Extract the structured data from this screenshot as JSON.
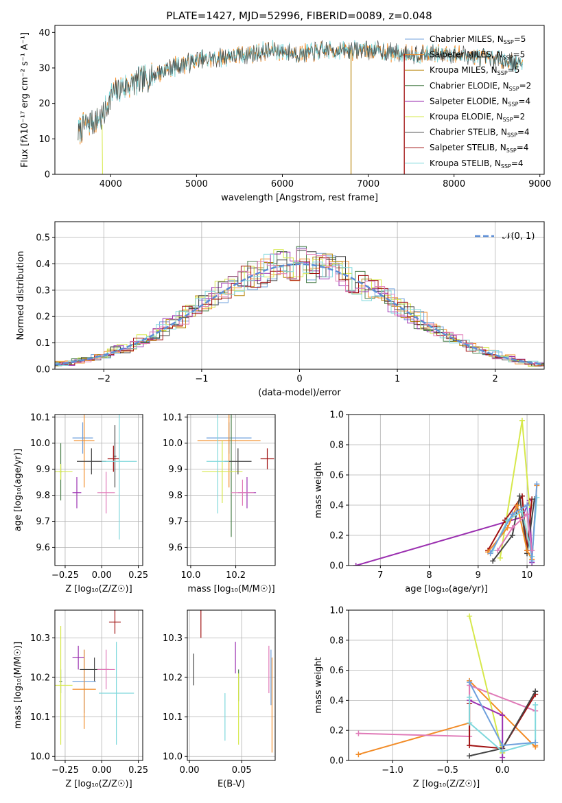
{
  "title": "PLATE=1427, MJD=52996, FIBERID=0089, z=0.048",
  "colors": {
    "Chabrier MILES": "#6fa0dc",
    "Salpeter MILES": "#f28c28",
    "Kroupa MILES": "#b8860b",
    "Chabrier ELODIE": "#4a7f4a",
    "Salpeter ELODIE": "#9b30b0",
    "Kroupa ELODIE": "#d6e84a",
    "Chabrier STELIB": "#444444",
    "Salpeter STELIB": "#a01010",
    "Kroupa STELIB": "#7fd8dc",
    "Pink": "#e07ab8",
    "gaussian": "#5b8dd6",
    "grid": "#b0b0b0"
  },
  "legend_spectrum": [
    {
      "model": "Chabrier MILES",
      "n": "5"
    },
    {
      "model": "Salpeter MILES",
      "n": "5"
    },
    {
      "model": "Kroupa MILES",
      "n": "5"
    },
    {
      "model": "Chabrier ELODIE",
      "n": "2"
    },
    {
      "model": "Salpeter ELODIE",
      "n": "4"
    },
    {
      "model": "Kroupa ELODIE",
      "n": "2"
    },
    {
      "model": "Chabrier STELIB",
      "n": "4"
    },
    {
      "model": "Salpeter STELIB",
      "n": "4"
    },
    {
      "model": "Kroupa STELIB",
      "n": "4"
    }
  ],
  "chart_data": [
    {
      "type": "line",
      "id": "spectrum",
      "xlabel": "wavelength [Angstrom, rest frame]",
      "ylabel": "Flux [fλ10⁻¹⁷ erg cm⁻² s⁻¹ A⁻¹]",
      "xlim": [
        3350,
        9050
      ],
      "ylim": [
        0,
        42
      ],
      "xticks": [
        4000,
        5000,
        6000,
        7000,
        8000,
        9000
      ],
      "yticks": [
        0,
        10,
        20,
        30,
        40
      ],
      "continuum": {
        "x": [
          3620,
          3700,
          3800,
          3900,
          4000,
          4100,
          4300,
          4500,
          4700,
          5000,
          5300,
          5600,
          5900,
          6200,
          6500,
          6800,
          7100,
          7400,
          7700,
          8000,
          8300,
          8600,
          8800
        ],
        "y": [
          12,
          14,
          15,
          16,
          22,
          24,
          26,
          28,
          30,
          32,
          33,
          34,
          35,
          34,
          35,
          35,
          35,
          34,
          34,
          34,
          33,
          32,
          31
        ]
      },
      "drops": [
        {
          "x": 6800,
          "model": "Kroupa MILES"
        },
        {
          "x": 7420,
          "model": "Salpeter STELIB"
        }
      ]
    },
    {
      "type": "bar",
      "id": "residuals",
      "xlabel": "(data-model)/error",
      "ylabel": "Normed distribution",
      "xlim": [
        -2.5,
        2.5
      ],
      "ylim": [
        0,
        0.56
      ],
      "xticks": [
        -2,
        -1,
        0,
        1,
        2
      ],
      "xticklabels": [
        "−2",
        "−1",
        "0",
        "1",
        "2"
      ],
      "yticks": [
        0.0,
        0.1,
        0.2,
        0.3,
        0.4,
        0.5
      ],
      "legend": "𝒩(0, 1)",
      "bin_width": 0.1
    },
    {
      "type": "scatter",
      "id": "Z-age",
      "xlabel": "Z [log₁₀(Z/Z☉)]",
      "ylabel": "age  [log₁₀(age/yr)]",
      "xlim": [
        -0.32,
        0.28
      ],
      "ylim": [
        9.53,
        10.11
      ],
      "xticks": [
        -0.25,
        0.0,
        0.25
      ],
      "xticklabels": [
        "−0.25",
        "0.00",
        "0.25"
      ],
      "yticks": [
        9.6,
        9.7,
        9.8,
        9.9,
        10.0,
        10.1
      ],
      "points": [
        {
          "m": "Chabrier MILES",
          "x": -0.13,
          "y": 10.02,
          "dx": 0.07,
          "dy": 0.06
        },
        {
          "m": "Salpeter MILES",
          "x": -0.12,
          "y": 10.01,
          "dx": 0.07,
          "dy": 0.18
        },
        {
          "m": "Chabrier ELODIE",
          "x": -0.28,
          "y": 9.89,
          "dx": 0.01,
          "dy": 0.11
        },
        {
          "m": "Salpeter ELODIE",
          "x": -0.17,
          "y": 9.81,
          "dx": 0.03,
          "dy": 0.06
        },
        {
          "m": "Kroupa ELODIE",
          "x": -0.28,
          "y": 9.89,
          "dx": 0.08,
          "dy": 0.03
        },
        {
          "m": "Chabrier STELIB",
          "x": -0.07,
          "y": 9.93,
          "dx": 0.1,
          "dy": 0.05
        },
        {
          "m": "Chabrier STELIB",
          "x": 0.09,
          "y": 9.95,
          "dx": 0.01,
          "dy": 0.12
        },
        {
          "m": "Salpeter STELIB",
          "x": 0.08,
          "y": 9.94,
          "dx": 0.04,
          "dy": 0.05
        },
        {
          "m": "Kroupa STELIB",
          "x": 0.12,
          "y": 9.93,
          "dx": 0.12,
          "dy": 0.3
        },
        {
          "m": "Pink",
          "x": 0.03,
          "y": 9.81,
          "dx": 0.06,
          "dy": 0.08
        }
      ]
    },
    {
      "type": "scatter",
      "id": "mass-age",
      "xlabel": "mass [log₁₀(M/M☉)]",
      "ylabel": "",
      "xlim": [
        9.985,
        10.375
      ],
      "ylim": [
        9.53,
        10.11
      ],
      "xticks": [
        10.0,
        10.2
      ],
      "yticks": [
        9.6,
        9.7,
        9.8,
        9.9,
        10.0,
        10.1
      ],
      "points": [
        {
          "m": "Chabrier MILES",
          "x": 10.17,
          "y": 10.02,
          "dx": 0.1,
          "dy": 0.06
        },
        {
          "m": "Salpeter MILES",
          "x": 10.17,
          "y": 10.01,
          "dx": 0.14,
          "dy": 0.18
        },
        {
          "m": "Chabrier ELODIE",
          "x": 10.18,
          "y": 9.89,
          "dx": 0.005,
          "dy": 0.25
        },
        {
          "m": "Salpeter ELODIE",
          "x": 10.25,
          "y": 9.81,
          "dx": 0.04,
          "dy": 0.06
        },
        {
          "m": "Kroupa ELODIE",
          "x": 10.14,
          "y": 9.89,
          "dx": 0.09,
          "dy": 0.12
        },
        {
          "m": "Chabrier STELIB",
          "x": 10.21,
          "y": 9.93,
          "dx": 0.06,
          "dy": 0.05
        },
        {
          "m": "Salpeter STELIB",
          "x": 10.34,
          "y": 9.94,
          "dx": 0.03,
          "dy": 0.04
        },
        {
          "m": "Kroupa STELIB",
          "x": 10.12,
          "y": 9.93,
          "dx": 0.05,
          "dy": 0.2
        },
        {
          "m": "Pink",
          "x": 10.23,
          "y": 9.81,
          "dx": 0.05,
          "dy": 0.05
        }
      ]
    },
    {
      "type": "line",
      "id": "age-weight",
      "xlabel": "age  [log₁₀(age/yr)]",
      "ylabel": "mass weight",
      "xlim": [
        6.35,
        10.35
      ],
      "ylim": [
        0,
        1.0
      ],
      "xticks": [
        7,
        8,
        9,
        10
      ],
      "yticks": [
        0.0,
        0.2,
        0.4,
        0.6,
        0.8,
        1.0
      ],
      "series": [
        {
          "m": "Salpeter ELODIE",
          "x": [
            6.5,
            9.9,
            10.05,
            10.1
          ],
          "y": [
            0.0,
            0.32,
            0.43,
            0.02
          ]
        },
        {
          "m": "Kroupa ELODIE",
          "x": [
            9.45,
            9.9,
            10.05
          ],
          "y": [
            0.05,
            0.96,
            0.4
          ]
        },
        {
          "m": "Salpeter STELIB",
          "x": [
            9.2,
            9.55,
            9.9,
            10.0,
            10.1
          ],
          "y": [
            0.1,
            0.3,
            0.46,
            0.1,
            0.44
          ]
        },
        {
          "m": "Chabrier STELIB",
          "x": [
            9.3,
            9.7,
            9.85,
            10.0,
            10.15
          ],
          "y": [
            0.03,
            0.2,
            0.46,
            0.08,
            0.44
          ]
        },
        {
          "m": "Salpeter MILES",
          "x": [
            9.2,
            9.6,
            9.8,
            10.0,
            10.1,
            10.2
          ],
          "y": [
            0.09,
            0.25,
            0.4,
            0.1,
            0.04,
            0.53
          ]
        },
        {
          "m": "Kroupa STELIB",
          "x": [
            9.3,
            9.6,
            9.9,
            10.1,
            10.2
          ],
          "y": [
            0.1,
            0.3,
            0.36,
            0.06,
            0.45
          ]
        },
        {
          "m": "Chabrier MILES",
          "x": [
            9.25,
            9.7,
            10.0,
            10.1,
            10.2
          ],
          "y": [
            0.08,
            0.34,
            0.4,
            0.03,
            0.54
          ]
        },
        {
          "m": "Pink",
          "x": [
            9.4,
            9.7,
            10.0,
            10.1
          ],
          "y": [
            0.1,
            0.25,
            0.34,
            0.1
          ]
        }
      ]
    },
    {
      "type": "scatter",
      "id": "Z-mass",
      "xlabel": "Z [log₁₀(Z/Z☉)]",
      "ylabel": "mass [log₁₀(M/M☉)]",
      "xlim": [
        -0.32,
        0.28
      ],
      "ylim": [
        9.99,
        10.37
      ],
      "xticks": [
        -0.25,
        0.0,
        0.25
      ],
      "xticklabels": [
        "−0.25",
        "0.00",
        "0.25"
      ],
      "yticks": [
        10.0,
        10.1,
        10.2,
        10.3
      ],
      "points": [
        {
          "m": "Chabrier MILES",
          "x": -0.12,
          "y": 10.19,
          "dx": 0.08,
          "dy": 0.08
        },
        {
          "m": "Salpeter MILES",
          "x": -0.12,
          "y": 10.17,
          "dx": 0.08,
          "dy": 0.1
        },
        {
          "m": "Chabrier ELODIE",
          "x": -0.28,
          "y": 10.19,
          "dx": 0.01,
          "dy": 0.03
        },
        {
          "m": "Salpeter ELODIE",
          "x": -0.16,
          "y": 10.25,
          "dx": 0.04,
          "dy": 0.03
        },
        {
          "m": "Kroupa ELODIE",
          "x": -0.28,
          "y": 10.18,
          "dx": 0.08,
          "dy": 0.15
        },
        {
          "m": "Chabrier STELIB",
          "x": -0.05,
          "y": 10.22,
          "dx": 0.1,
          "dy": 0.03
        },
        {
          "m": "Salpeter STELIB",
          "x": 0.09,
          "y": 10.34,
          "dx": 0.04,
          "dy": 0.03
        },
        {
          "m": "Kroupa STELIB",
          "x": 0.1,
          "y": 10.16,
          "dx": 0.12,
          "dy": 0.13
        },
        {
          "m": "Pink",
          "x": 0.03,
          "y": 10.22,
          "dx": 0.06,
          "dy": 0.05
        }
      ]
    },
    {
      "type": "scatter",
      "id": "ebv-mass",
      "xlabel": "E(B-V)",
      "ylabel": "",
      "xlim": [
        -0.002,
        0.082
      ],
      "ylim": [
        9.99,
        10.37
      ],
      "xticks": [
        0.0,
        0.05
      ],
      "xticklabels": [
        "0.00",
        "0.05"
      ],
      "yticks": [
        10.0,
        10.1,
        10.2,
        10.3
      ],
      "points": [
        {
          "m": "Chabrier STELIB",
          "x": 0.004,
          "y": 10.22,
          "dx": 0,
          "dy": 0.04
        },
        {
          "m": "Salpeter STELIB",
          "x": 0.011,
          "y": 10.34,
          "dx": 0,
          "dy": 0.04
        },
        {
          "m": "Kroupa STELIB",
          "x": 0.034,
          "y": 10.1,
          "dx": 0,
          "dy": 0.06
        },
        {
          "m": "Salpeter ELODIE",
          "x": 0.044,
          "y": 10.25,
          "dx": 0,
          "dy": 0.04
        },
        {
          "m": "Chabrier ELODIE",
          "x": 0.047,
          "y": 10.18,
          "dx": 0,
          "dy": 0.04
        },
        {
          "m": "Kroupa ELODIE",
          "x": 0.047,
          "y": 10.12,
          "dx": 0,
          "dy": 0.09
        },
        {
          "m": "Pink",
          "x": 0.076,
          "y": 10.22,
          "dx": 0,
          "dy": 0.06
        },
        {
          "m": "Chabrier MILES",
          "x": 0.078,
          "y": 10.2,
          "dx": 0,
          "dy": 0.07
        },
        {
          "m": "Salpeter MILES",
          "x": 0.079,
          "y": 10.13,
          "dx": 0,
          "dy": 0.12
        }
      ]
    },
    {
      "type": "line",
      "id": "Z-weight",
      "xlabel": "Z [log₁₀(Z/Z☉)]",
      "ylabel": "mass weight",
      "xlim": [
        -1.4,
        0.38
      ],
      "ylim": [
        0,
        1.0
      ],
      "xticks": [
        -1.0,
        -0.5,
        0.0
      ],
      "xticklabels": [
        "−1.0",
        "−0.5",
        "0.0"
      ],
      "yticks": [
        0.0,
        0.2,
        0.4,
        0.6,
        0.8,
        1.0
      ],
      "series": [
        {
          "m": "Salpeter MILES",
          "x": [
            -1.31,
            -0.3,
            -0.3,
            0.3,
            0.3
          ],
          "y": [
            0.04,
            0.25,
            0.53,
            0.09,
            0.1
          ]
        },
        {
          "m": "Pink",
          "x": [
            -1.31,
            -0.3,
            -0.3,
            0.3
          ],
          "y": [
            0.18,
            0.16,
            0.5,
            0.33
          ]
        },
        {
          "m": "Kroupa ELODIE",
          "x": [
            -0.3,
            0.0,
            0.0
          ],
          "y": [
            0.96,
            0.05,
            0.05
          ]
        },
        {
          "m": "Salpeter STELIB",
          "x": [
            -0.3,
            -0.3,
            0.0,
            0.3
          ],
          "y": [
            0.38,
            0.1,
            0.08,
            0.44
          ]
        },
        {
          "m": "Chabrier STELIB",
          "x": [
            -0.3,
            0.0,
            0.3
          ],
          "y": [
            0.03,
            0.08,
            0.46
          ]
        },
        {
          "m": "Salpeter ELODIE",
          "x": [
            -0.3,
            0.0,
            0.0
          ],
          "y": [
            0.4,
            0.3,
            0.02
          ]
        },
        {
          "m": "Kroupa STELIB",
          "x": [
            -0.3,
            -0.3,
            0.0,
            0.3,
            0.3
          ],
          "y": [
            0.42,
            0.25,
            0.06,
            0.12,
            0.37
          ]
        },
        {
          "m": "Chabrier MILES",
          "x": [
            -0.3,
            0.0,
            0.3
          ],
          "y": [
            0.52,
            0.1,
            0.12
          ]
        }
      ]
    }
  ]
}
